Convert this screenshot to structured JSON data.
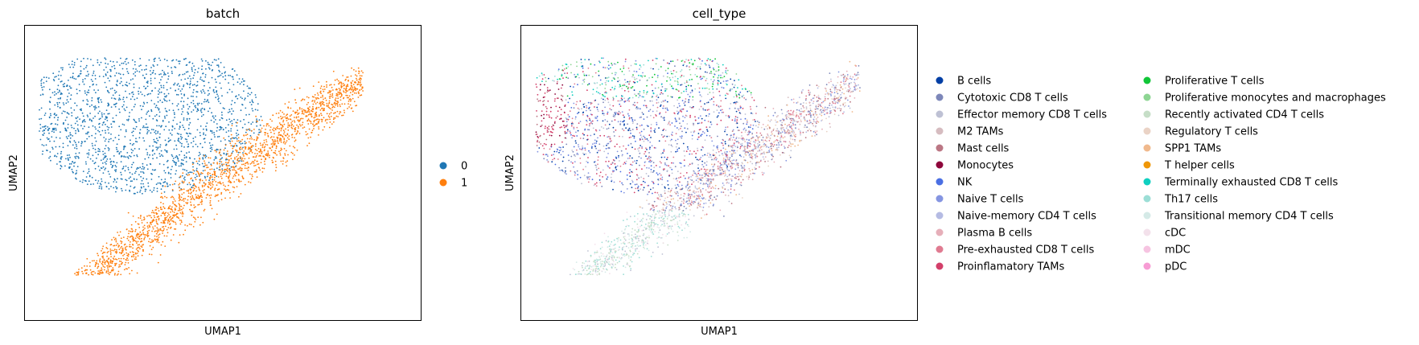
{
  "chart_data": [
    {
      "type": "scatter",
      "title": "batch",
      "xlabel": "UMAP1",
      "ylabel": "UMAP2",
      "legend_placement": "right",
      "grid": false,
      "ticks_visible": false,
      "series": [
        {
          "name": "0",
          "color": "#1f77b4",
          "region": "upper-left cluster"
        },
        {
          "name": "1",
          "color": "#ff7f0e",
          "region": "lower-right diagonal band"
        }
      ]
    },
    {
      "type": "scatter",
      "title": "cell_type",
      "xlabel": "UMAP1",
      "ylabel": "UMAP2",
      "legend_placement": "right",
      "grid": false,
      "ticks_visible": false,
      "series": [
        {
          "name": "B cells",
          "color": "#023fa5"
        },
        {
          "name": "Cytotoxic CD8 T cells",
          "color": "#7d87b9"
        },
        {
          "name": "Effector memory CD8 T cells",
          "color": "#bec1d4"
        },
        {
          "name": "M2 TAMs",
          "color": "#d6bcc0"
        },
        {
          "name": "Mast cells",
          "color": "#bb7784"
        },
        {
          "name": "Monocytes",
          "color": "#8e063b"
        },
        {
          "name": "NK",
          "color": "#4a6fe3"
        },
        {
          "name": "Naive T cells",
          "color": "#8595e1"
        },
        {
          "name": "Naive-memory CD4 T cells",
          "color": "#b5bbe3"
        },
        {
          "name": "Plasma B cells",
          "color": "#e6afb9"
        },
        {
          "name": "Pre-exhausted CD8 T cells",
          "color": "#e07b91"
        },
        {
          "name": "Proinflamatory TAMs",
          "color": "#d33f6a"
        },
        {
          "name": "Proliferative T cells",
          "color": "#11c638"
        },
        {
          "name": "Proliferative monocytes and macrophages",
          "color": "#8dd593"
        },
        {
          "name": "Recently activated CD4 T cells",
          "color": "#c6dec7"
        },
        {
          "name": "Regulatory T cells",
          "color": "#ead3c6"
        },
        {
          "name": "SPP1 TAMs",
          "color": "#f0b98d"
        },
        {
          "name": "T helper cells",
          "color": "#ef9708"
        },
        {
          "name": "Terminally exhausted CD8 T cells",
          "color": "#0fcfc0"
        },
        {
          "name": "Th17 cells",
          "color": "#9cded6"
        },
        {
          "name": "Transitional memory CD4 T cells",
          "color": "#d5eae7"
        },
        {
          "name": "cDC",
          "color": "#f3e1eb"
        },
        {
          "name": "mDC",
          "color": "#f6c4e1"
        },
        {
          "name": "pDC",
          "color": "#f79cd4"
        }
      ]
    }
  ]
}
